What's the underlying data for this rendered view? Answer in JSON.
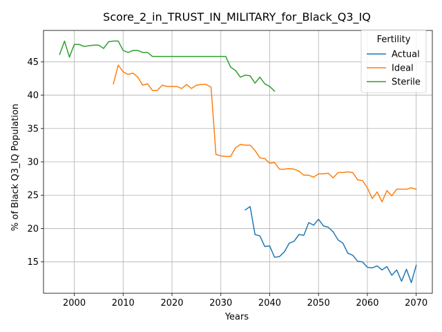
{
  "chart_data": {
    "type": "line",
    "title": "Score_2_in_TRUST_IN_MILITARY_for_Black_Q3_IQ",
    "xlabel": "Years",
    "ylabel": "% of Black Q3_IQ Population",
    "xlim": [
      1993.7,
      2073.3
    ],
    "ylim": [
      10.3,
      49.7
    ],
    "xticks": [
      2000,
      2010,
      2020,
      2030,
      2040,
      2050,
      2060,
      2070
    ],
    "yticks": [
      15,
      20,
      25,
      30,
      35,
      40,
      45
    ],
    "grid": true,
    "legend": {
      "title": "Fertility",
      "position": "top-right"
    },
    "series": [
      {
        "name": "Actual",
        "color": "#1f77b4",
        "x": [
          2035,
          2036,
          2037,
          2038,
          2039,
          2040,
          2041,
          2042,
          2043,
          2044,
          2045,
          2046,
          2047,
          2048,
          2049,
          2050,
          2051,
          2052,
          2053,
          2054,
          2055,
          2056,
          2057,
          2058,
          2059,
          2060,
          2061,
          2062,
          2063,
          2064,
          2065,
          2066,
          2067,
          2068,
          2069,
          2070
        ],
        "y": [
          22.8,
          23.3,
          19.1,
          18.9,
          17.3,
          17.4,
          15.7,
          15.8,
          16.5,
          17.8,
          18.1,
          19.1,
          19.0,
          20.9,
          20.5,
          21.4,
          20.4,
          20.2,
          19.5,
          18.3,
          17.8,
          16.3,
          16.0,
          15.1,
          15.0,
          14.2,
          14.1,
          14.4,
          13.8,
          14.3,
          13.0,
          13.8,
          12.1,
          13.9,
          11.9,
          14.5
        ]
      },
      {
        "name": "Ideal",
        "color": "#ff7f0e",
        "x": [
          2008,
          2009,
          2010,
          2011,
          2012,
          2013,
          2014,
          2015,
          2016,
          2017,
          2018,
          2019,
          2020,
          2021,
          2022,
          2023,
          2024,
          2025,
          2026,
          2027,
          2028,
          2029,
          2030,
          2031,
          2032,
          2033,
          2034,
          2035,
          2036,
          2037,
          2038,
          2039,
          2040,
          2041,
          2042,
          2043,
          2044,
          2045,
          2046,
          2047,
          2048,
          2049,
          2050,
          2051,
          2052,
          2053,
          2054,
          2055,
          2056,
          2057,
          2058,
          2059,
          2060,
          2061,
          2062,
          2063,
          2064,
          2065,
          2066,
          2067,
          2068,
          2069,
          2070
        ],
        "y": [
          41.7,
          44.5,
          43.5,
          43.1,
          43.3,
          42.7,
          41.5,
          41.7,
          40.7,
          40.7,
          41.5,
          41.3,
          41.3,
          41.3,
          41.0,
          41.6,
          41.0,
          41.5,
          41.6,
          41.6,
          41.2,
          31.1,
          30.9,
          30.8,
          30.8,
          32.1,
          32.6,
          32.5,
          32.5,
          31.7,
          30.6,
          30.5,
          29.8,
          29.9,
          28.9,
          28.9,
          29.0,
          28.9,
          28.6,
          28.0,
          28.0,
          27.7,
          28.2,
          28.2,
          28.3,
          27.6,
          28.4,
          28.4,
          28.5,
          28.4,
          27.3,
          27.2,
          26.1,
          24.5,
          25.5,
          24.0,
          25.7,
          24.9,
          25.9,
          25.9,
          25.9,
          26.1,
          25.9
        ]
      },
      {
        "name": "Sterile",
        "color": "#2ca02c",
        "x": [
          1997,
          1998,
          1999,
          2000,
          2001,
          2002,
          2003,
          2004,
          2005,
          2006,
          2007,
          2008,
          2009,
          2010,
          2011,
          2012,
          2013,
          2014,
          2015,
          2016,
          2017,
          2018,
          2019,
          2020,
          2021,
          2022,
          2023,
          2024,
          2025,
          2026,
          2027,
          2028,
          2029,
          2030,
          2031,
          2032,
          2033,
          2034,
          2035,
          2036,
          2037,
          2038,
          2039,
          2040,
          2041
        ],
        "y": [
          46.1,
          48.1,
          45.7,
          47.6,
          47.6,
          47.3,
          47.4,
          47.5,
          47.5,
          47.0,
          48.0,
          48.1,
          48.1,
          46.7,
          46.4,
          46.7,
          46.7,
          46.4,
          46.4,
          45.8,
          45.8,
          45.8,
          45.8,
          45.8,
          45.8,
          45.8,
          45.8,
          45.8,
          45.8,
          45.8,
          45.8,
          45.8,
          45.8,
          45.8,
          45.8,
          44.2,
          43.7,
          42.7,
          43.0,
          42.9,
          41.8,
          42.7,
          41.7,
          41.3,
          40.6
        ]
      }
    ]
  }
}
